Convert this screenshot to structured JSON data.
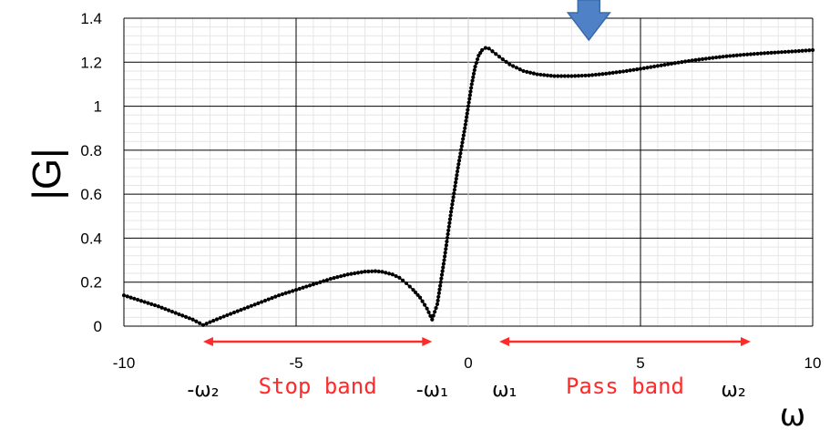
{
  "chart_data": {
    "type": "scatter",
    "title": "",
    "xlabel": "ω",
    "ylabel": "|G|",
    "xlim": [
      -10,
      10
    ],
    "ylim": [
      0,
      1.4
    ],
    "xticks": [
      "-10",
      "-5",
      "0",
      "5",
      "10"
    ],
    "yticks": [
      "0",
      "0.2",
      "0.4",
      "0.6",
      "0.8",
      "1",
      "1.2",
      "1.4"
    ],
    "grid": true,
    "series": [
      {
        "color": "#000000",
        "x": [
          -10,
          -9.5,
          -9,
          -8.5,
          -8,
          -7.7,
          -7.4,
          -7,
          -6.5,
          -6,
          -5.5,
          -5,
          -4.5,
          -4,
          -3.5,
          -3,
          -2.7,
          -2.5,
          -2.2,
          -2,
          -1.8,
          -1.6,
          -1.4,
          -1.2,
          -1.05,
          -0.9,
          -0.7,
          -0.5,
          -0.3,
          -0.1,
          0,
          0.1,
          0.2,
          0.3,
          0.4,
          0.5,
          0.6,
          0.7,
          0.9,
          1.2,
          1.6,
          2,
          2.5,
          3,
          3.5,
          4,
          4.5,
          5,
          5.5,
          6,
          6.5,
          7,
          7.5,
          8,
          8.5,
          9,
          9.5,
          10
        ],
        "y": [
          0.14,
          0.115,
          0.09,
          0.06,
          0.03,
          0.005,
          0.025,
          0.05,
          0.08,
          0.11,
          0.14,
          0.165,
          0.19,
          0.215,
          0.235,
          0.248,
          0.25,
          0.247,
          0.235,
          0.22,
          0.195,
          0.165,
          0.13,
          0.08,
          0.03,
          0.1,
          0.3,
          0.52,
          0.72,
          0.9,
          1.0,
          1.1,
          1.18,
          1.23,
          1.255,
          1.265,
          1.262,
          1.25,
          1.225,
          1.19,
          1.16,
          1.145,
          1.137,
          1.137,
          1.14,
          1.148,
          1.158,
          1.17,
          1.183,
          1.196,
          1.208,
          1.218,
          1.227,
          1.234,
          1.24,
          1.245,
          1.25,
          1.255
        ]
      }
    ],
    "annotations": {
      "stop_band": {
        "label": "Stop band",
        "from": -7.7,
        "to": -1.05,
        "color": "#ff2a2a"
      },
      "pass_band": {
        "label": "Pass band",
        "from": 0.9,
        "to": 8.2,
        "color": "#ff2a2a"
      },
      "freq_labels": [
        {
          "text": "-ω₂",
          "x": -7.7
        },
        {
          "text": "-ω₁",
          "x": -1.05
        },
        {
          "text": "ω₁",
          "x": 1.05
        },
        {
          "text": "ω₂",
          "x": 7.7
        }
      ],
      "down_arrow": {
        "x": 3.5,
        "color": "#4f81c6"
      }
    }
  }
}
